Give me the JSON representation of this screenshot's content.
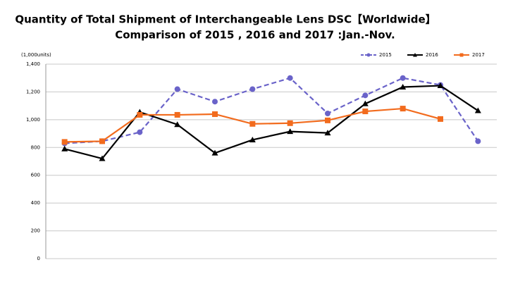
{
  "chart_data": {
    "type": "line",
    "title": "Quantity of Total Shipment of Interchangeable Lens DSC【Worldwide】",
    "subtitle": "Comparison of 2015 , 2016 and 2017 :Jan.-Nov.",
    "y_label": "(1,000units)",
    "categories": [
      null,
      null,
      null,
      null,
      null,
      null,
      null,
      null,
      null,
      null,
      null,
      null
    ],
    "series": [
      {
        "name": "2015",
        "color": "#6a63c9",
        "marker": "circle",
        "dash": true,
        "values": [
          830,
          845,
          910,
          1220,
          1130,
          1220,
          1300,
          1045,
          1175,
          1300,
          1250,
          845
        ]
      },
      {
        "name": "2016",
        "color": "#000000",
        "marker": "triangle",
        "dash": false,
        "values": [
          790,
          720,
          1055,
          965,
          760,
          855,
          915,
          905,
          1115,
          1235,
          1245,
          1065
        ]
      },
      {
        "name": "2017",
        "color": "#f26b1d",
        "marker": "square",
        "dash": false,
        "values": [
          840,
          845,
          1035,
          1035,
          1040,
          970,
          975,
          995,
          1060,
          1080,
          1005,
          null
        ]
      }
    ],
    "ylim": [
      0,
      1400
    ],
    "yticks": [
      0,
      200,
      400,
      600,
      800,
      {
        "value": 1000,
        "label": "1,000"
      },
      {
        "value": 1200,
        "label": "1,200"
      },
      {
        "value": 1400,
        "label": "1,400"
      }
    ],
    "grid": true,
    "legend": "top-right"
  }
}
